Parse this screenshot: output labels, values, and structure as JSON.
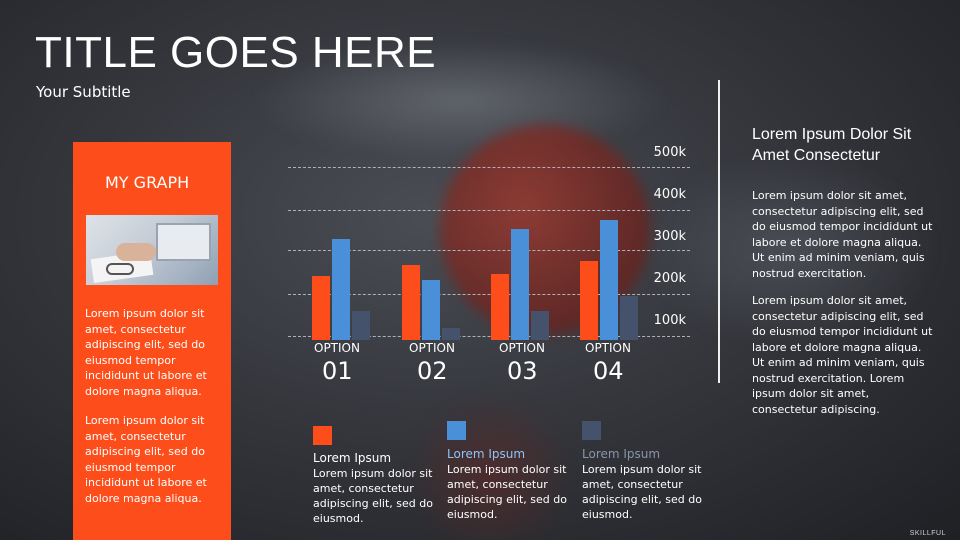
{
  "header": {
    "title": "TITLE GOES HERE",
    "subtitle": "Your Subtitle"
  },
  "side_card": {
    "title": "MY GRAPH",
    "image": "office-desk-photo",
    "paragraph1": "Lorem ipsum dolor sit amet, consectetur adipiscing elit, sed do eiusmod tempor incididunt ut labore et dolore magna aliqua.",
    "paragraph2": "Lorem ipsum dolor sit amet, consectetur adipiscing elit, sed do eiusmod tempor incididunt ut labore et dolore magna aliqua."
  },
  "chart_data": {
    "type": "bar",
    "categories": [
      "01",
      "02",
      "03",
      "04"
    ],
    "category_prefix": "OPTION",
    "y_tick_labels": [
      "500k",
      "400k",
      "300k",
      "200k",
      "100k"
    ],
    "series": [
      {
        "name": "Lorem Ipsum",
        "color": "#fc4d1a",
        "values": [
          220,
          245,
          225,
          255
        ]
      },
      {
        "name": "Lorem Ipsum",
        "color": "#4a90d9",
        "values": [
          305,
          210,
          330,
          350
        ]
      },
      {
        "name": "Lorem Ipsum",
        "color": "#44536b",
        "values": [
          140,
          100,
          140,
          175
        ]
      }
    ],
    "ylim": [
      100,
      500
    ],
    "grid": true
  },
  "legend": [
    {
      "title": "Lorem Ipsum",
      "text": "Lorem ipsum dolor sit amet, consectetur adipiscing elit, sed do eiusmod.",
      "color": "#fc4d1a",
      "title_color": "#ffffff"
    },
    {
      "title": "Lorem Ipsum",
      "text": "Lorem ipsum dolor sit amet, consectetur adipiscing elit, sed do eiusmod.",
      "color": "#4a90d9",
      "title_color": "#8fc3f5"
    },
    {
      "title": "Lorem Ipsum",
      "text": "Lorem ipsum dolor sit amet, consectetur adipiscing elit, sed do eiusmod.",
      "color": "#44536b",
      "title_color": "#8895a8"
    }
  ],
  "right_panel": {
    "heading": "Lorem Ipsum Dolor Sit Amet Consectetur",
    "paragraph1": "Lorem ipsum dolor sit amet, consectetur adipiscing elit, sed do eiusmod tempor incididunt ut labore et dolore magna aliqua. Ut enim ad minim veniam, quis nostrud exercitation.",
    "paragraph2": "Lorem ipsum dolor sit amet, consectetur adipiscing elit, sed do eiusmod tempor incididunt ut labore et dolore magna aliqua. Ut enim ad minim veniam, quis nostrud exercitation. Lorem ipsum dolor sit amet, consectetur adipiscing."
  },
  "watermark": "SKILLFUL",
  "colors": {
    "accent": "#fc4d1a",
    "blue": "#4a90d9",
    "slate": "#44536b",
    "background": "#35373d"
  }
}
